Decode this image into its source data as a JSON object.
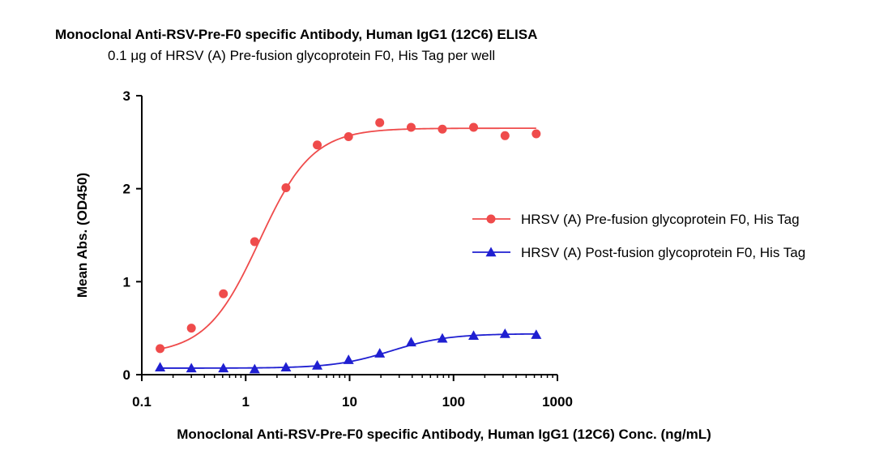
{
  "chart_data": {
    "type": "scatter",
    "title": "Monoclonal Anti-RSV-Pre-F0 specific Antibody, Human IgG1 (12C6) ELISA",
    "subtitle": "0.1 μg of HRSV (A) Pre-fusion glycoprotein F0, His Tag per well",
    "xlabel": "Monoclonal Anti-RSV-Pre-F0 specific Antibody, Human IgG1 (12C6) Conc. (ng/mL)",
    "ylabel": "Mean Abs. (OD450)",
    "xscale": "log",
    "xlim": [
      0.1,
      1000
    ],
    "ylim": [
      0,
      3
    ],
    "xticks": [
      {
        "value": 0.1,
        "label": "0.1"
      },
      {
        "value": 1,
        "label": "1"
      },
      {
        "value": 10,
        "label": "10"
      },
      {
        "value": 100,
        "label": "100"
      },
      {
        "value": 1000,
        "label": "1000"
      }
    ],
    "yticks": [
      {
        "value": 0,
        "label": "0"
      },
      {
        "value": 1,
        "label": "1"
      },
      {
        "value": 2,
        "label": "2"
      },
      {
        "value": 3,
        "label": "3"
      }
    ],
    "legend_position": "right",
    "series": [
      {
        "name": "HRSV (A) Pre-fusion glycoprotein F0, His Tag",
        "color": "#ef4b4b",
        "marker": "circle",
        "x": [
          0.15,
          0.3,
          0.61,
          1.22,
          2.44,
          4.88,
          9.77,
          19.5,
          39.1,
          78.1,
          156,
          313,
          625
        ],
        "values": [
          0.28,
          0.5,
          0.87,
          1.43,
          2.01,
          2.47,
          2.56,
          2.71,
          2.66,
          2.64,
          2.66,
          2.57,
          2.59
        ],
        "fit": {
          "bottom": 0.22,
          "top": 2.65,
          "ec50": 1.35,
          "hill": 1.7
        }
      },
      {
        "name": "HRSV (A) Post-fusion glycoprotein F0, His Tag",
        "color": "#1f1fd1",
        "marker": "triangle",
        "x": [
          0.15,
          0.3,
          0.61,
          1.22,
          2.44,
          4.88,
          9.77,
          19.5,
          39.1,
          78.1,
          156,
          313,
          625
        ],
        "values": [
          0.08,
          0.07,
          0.07,
          0.06,
          0.08,
          0.1,
          0.16,
          0.23,
          0.35,
          0.39,
          0.42,
          0.44,
          0.43
        ],
        "fit": {
          "bottom": 0.07,
          "top": 0.44,
          "ec50": 25,
          "hill": 1.6
        }
      }
    ]
  }
}
